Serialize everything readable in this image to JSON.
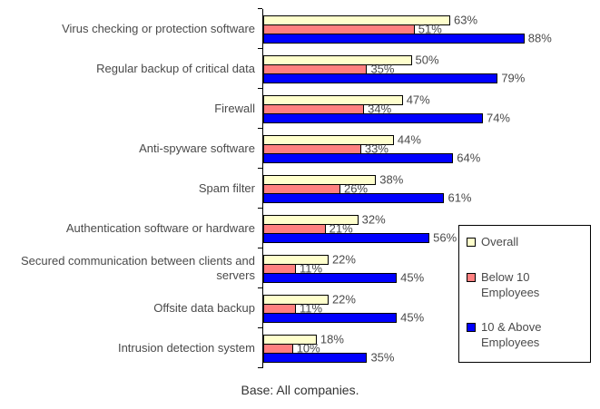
{
  "chart_data": {
    "type": "bar",
    "orientation": "horizontal",
    "title": "",
    "categories": [
      "Virus checking or protection software",
      "Regular backup of critical data",
      "Firewall",
      "Anti-spyware software",
      "Spam filter",
      "Authentication software or hardware",
      "Secured communication between clients and servers",
      "Offsite data backup",
      "Intrusion detection system"
    ],
    "series": [
      {
        "name": "Overall",
        "color": "#FFFFCC",
        "values": [
          63,
          50,
          47,
          44,
          38,
          32,
          22,
          22,
          18
        ]
      },
      {
        "name": "Below 10 Employees",
        "color": "#FF8080",
        "values": [
          51,
          35,
          34,
          33,
          26,
          21,
          11,
          11,
          10
        ]
      },
      {
        "name": "10 & Above Employees",
        "color": "#0000FF",
        "values": [
          88,
          79,
          74,
          64,
          61,
          56,
          45,
          45,
          35
        ]
      }
    ],
    "value_suffix": "%",
    "xlim": [
      0,
      100
    ],
    "grid": false,
    "legend_position": "right",
    "caption": "Base: All companies."
  },
  "colors": {
    "background": "#ffffff",
    "axis": "#000000",
    "bar_border": "#000000",
    "text": "#4a4a4a"
  }
}
